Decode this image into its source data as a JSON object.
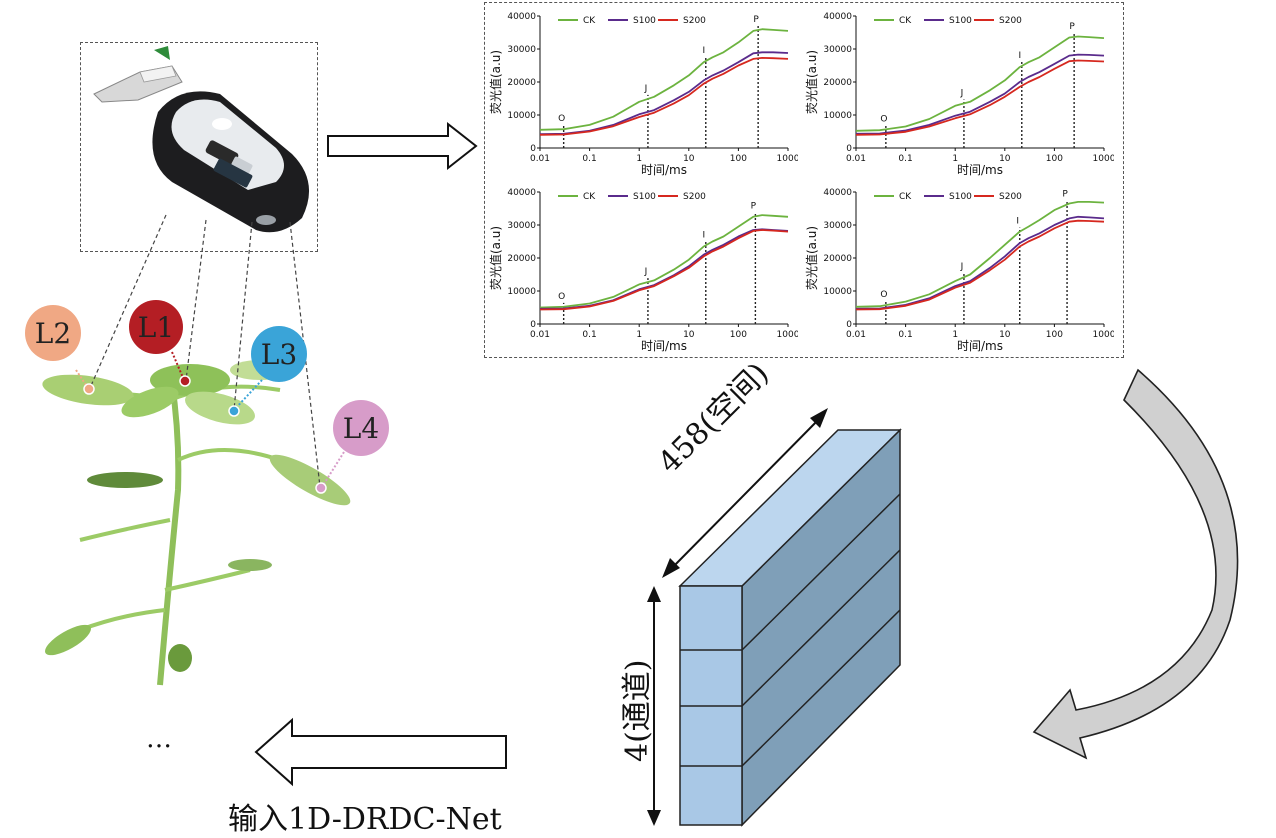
{
  "leaf_labels": [
    {
      "id": "L2",
      "label": "L2",
      "color": "#f0a884"
    },
    {
      "id": "L1",
      "label": "L1",
      "color": "#b41e24"
    },
    {
      "id": "L3",
      "label": "L3",
      "color": "#3aa4d8"
    },
    {
      "id": "L4",
      "label": "L4",
      "color": "#d79cc9"
    }
  ],
  "charts_common": {
    "legend": [
      {
        "name": "CK",
        "color": "#6cb33f"
      },
      {
        "name": "S100",
        "color": "#5a2b8c"
      },
      {
        "name": "S200",
        "color": "#d6281f"
      }
    ],
    "ylabel": "荧光值(a.u)",
    "xlabel": "时间/ms",
    "xticks": [
      "0.01",
      "0.1",
      "1",
      "10",
      "100",
      "1000"
    ],
    "yticks": [
      "0",
      "10000",
      "20000",
      "30000",
      "40000"
    ],
    "phase_labels": [
      "O",
      "J",
      "I",
      "P"
    ]
  },
  "chart_data": [
    {
      "type": "line",
      "xscale": "log",
      "xlim": [
        0.01,
        1000
      ],
      "ylim": [
        0,
        40000
      ],
      "phases": {
        "O": 0.03,
        "J": 1.5,
        "I": 22,
        "P": 250
      },
      "x": [
        0.01,
        0.03,
        0.1,
        0.3,
        1,
        2,
        5,
        10,
        20,
        30,
        50,
        100,
        200,
        300,
        500,
        1000
      ],
      "series": [
        {
          "name": "CK",
          "values": [
            5500,
            5700,
            7000,
            9500,
            14000,
            15500,
            19000,
            22000,
            26000,
            27500,
            29000,
            32000,
            35500,
            36000,
            35800,
            35500
          ]
        },
        {
          "name": "S100",
          "values": [
            4200,
            4300,
            5200,
            7000,
            10200,
            11500,
            14500,
            17000,
            20500,
            22000,
            23500,
            26000,
            28700,
            29000,
            29000,
            28800
          ]
        },
        {
          "name": "S200",
          "values": [
            4000,
            4100,
            5000,
            6600,
            9400,
            10700,
            13500,
            16000,
            19500,
            21000,
            22500,
            25000,
            27000,
            27300,
            27200,
            27000
          ]
        }
      ]
    },
    {
      "type": "line",
      "xscale": "log",
      "xlim": [
        0.01,
        1000
      ],
      "ylim": [
        0,
        40000
      ],
      "phases": {
        "O": 0.04,
        "J": 1.5,
        "I": 22,
        "P": 250
      },
      "x": [
        0.01,
        0.03,
        0.1,
        0.3,
        1,
        2,
        5,
        10,
        20,
        30,
        50,
        100,
        200,
        300,
        500,
        1000
      ],
      "series": [
        {
          "name": "CK",
          "values": [
            5200,
            5400,
            6500,
            8800,
            12800,
            14000,
            17500,
            20500,
            24500,
            26000,
            27500,
            30500,
            33500,
            33800,
            33600,
            33300
          ]
        },
        {
          "name": "S100",
          "values": [
            4300,
            4400,
            5300,
            7000,
            9800,
            11000,
            14000,
            16500,
            20000,
            21500,
            23000,
            25500,
            28000,
            28300,
            28200,
            28000
          ]
        },
        {
          "name": "S200",
          "values": [
            4000,
            4100,
            4900,
            6500,
            9000,
            10200,
            13000,
            15500,
            18500,
            20000,
            21500,
            24000,
            26300,
            26500,
            26400,
            26200
          ]
        }
      ]
    },
    {
      "type": "line",
      "xscale": "log",
      "xlim": [
        0.01,
        1000
      ],
      "ylim": [
        0,
        40000
      ],
      "phases": {
        "O": 0.03,
        "J": 1.5,
        "I": 22,
        "P": 220
      },
      "x": [
        0.01,
        0.03,
        0.1,
        0.3,
        1,
        2,
        5,
        10,
        20,
        30,
        50,
        100,
        200,
        300,
        500,
        1000
      ],
      "series": [
        {
          "name": "CK",
          "values": [
            5000,
            5200,
            6200,
            8200,
            12000,
            13200,
            16500,
            19500,
            23500,
            25000,
            26500,
            29500,
            32500,
            33000,
            32800,
            32500
          ]
        },
        {
          "name": "S100",
          "values": [
            4600,
            4700,
            5500,
            7200,
            10500,
            11800,
            14800,
            17500,
            21000,
            22500,
            24000,
            26500,
            28500,
            28700,
            28500,
            28200
          ]
        },
        {
          "name": "S200",
          "values": [
            4400,
            4500,
            5300,
            7000,
            10200,
            11500,
            14500,
            17000,
            20500,
            22000,
            23500,
            26000,
            28200,
            28500,
            28300,
            28000
          ]
        }
      ]
    },
    {
      "type": "line",
      "xscale": "log",
      "xlim": [
        0.01,
        1000
      ],
      "ylim": [
        0,
        40000
      ],
      "phases": {
        "O": 0.04,
        "J": 1.5,
        "I": 20,
        "P": 180
      },
      "x": [
        0.01,
        0.03,
        0.1,
        0.3,
        1,
        2,
        5,
        10,
        20,
        30,
        50,
        100,
        200,
        300,
        500,
        1000
      ],
      "series": [
        {
          "name": "CK",
          "values": [
            5200,
            5400,
            6800,
            9000,
            13000,
            15000,
            20000,
            24000,
            28000,
            29500,
            31500,
            34500,
            36500,
            37000,
            37000,
            36800
          ]
        },
        {
          "name": "S100",
          "values": [
            4600,
            4700,
            5800,
            7800,
            11500,
            13000,
            17000,
            20500,
            24500,
            26000,
            27500,
            30000,
            32000,
            32500,
            32300,
            32000
          ]
        },
        {
          "name": "S200",
          "values": [
            4400,
            4500,
            5500,
            7400,
            11000,
            12500,
            16300,
            19500,
            23500,
            25000,
            26500,
            29000,
            31000,
            31300,
            31200,
            31000
          ]
        }
      ]
    }
  ],
  "tensor": {
    "spatial_label": "458(空间)",
    "channel_label": "4(通道)",
    "front_color": "#a9c8e6",
    "side_color": "#7f9fb8",
    "top_color": "#bcd6ee"
  },
  "bottom": {
    "ellipsis": "…",
    "input_label": "输入1D-DRDC-Net"
  }
}
